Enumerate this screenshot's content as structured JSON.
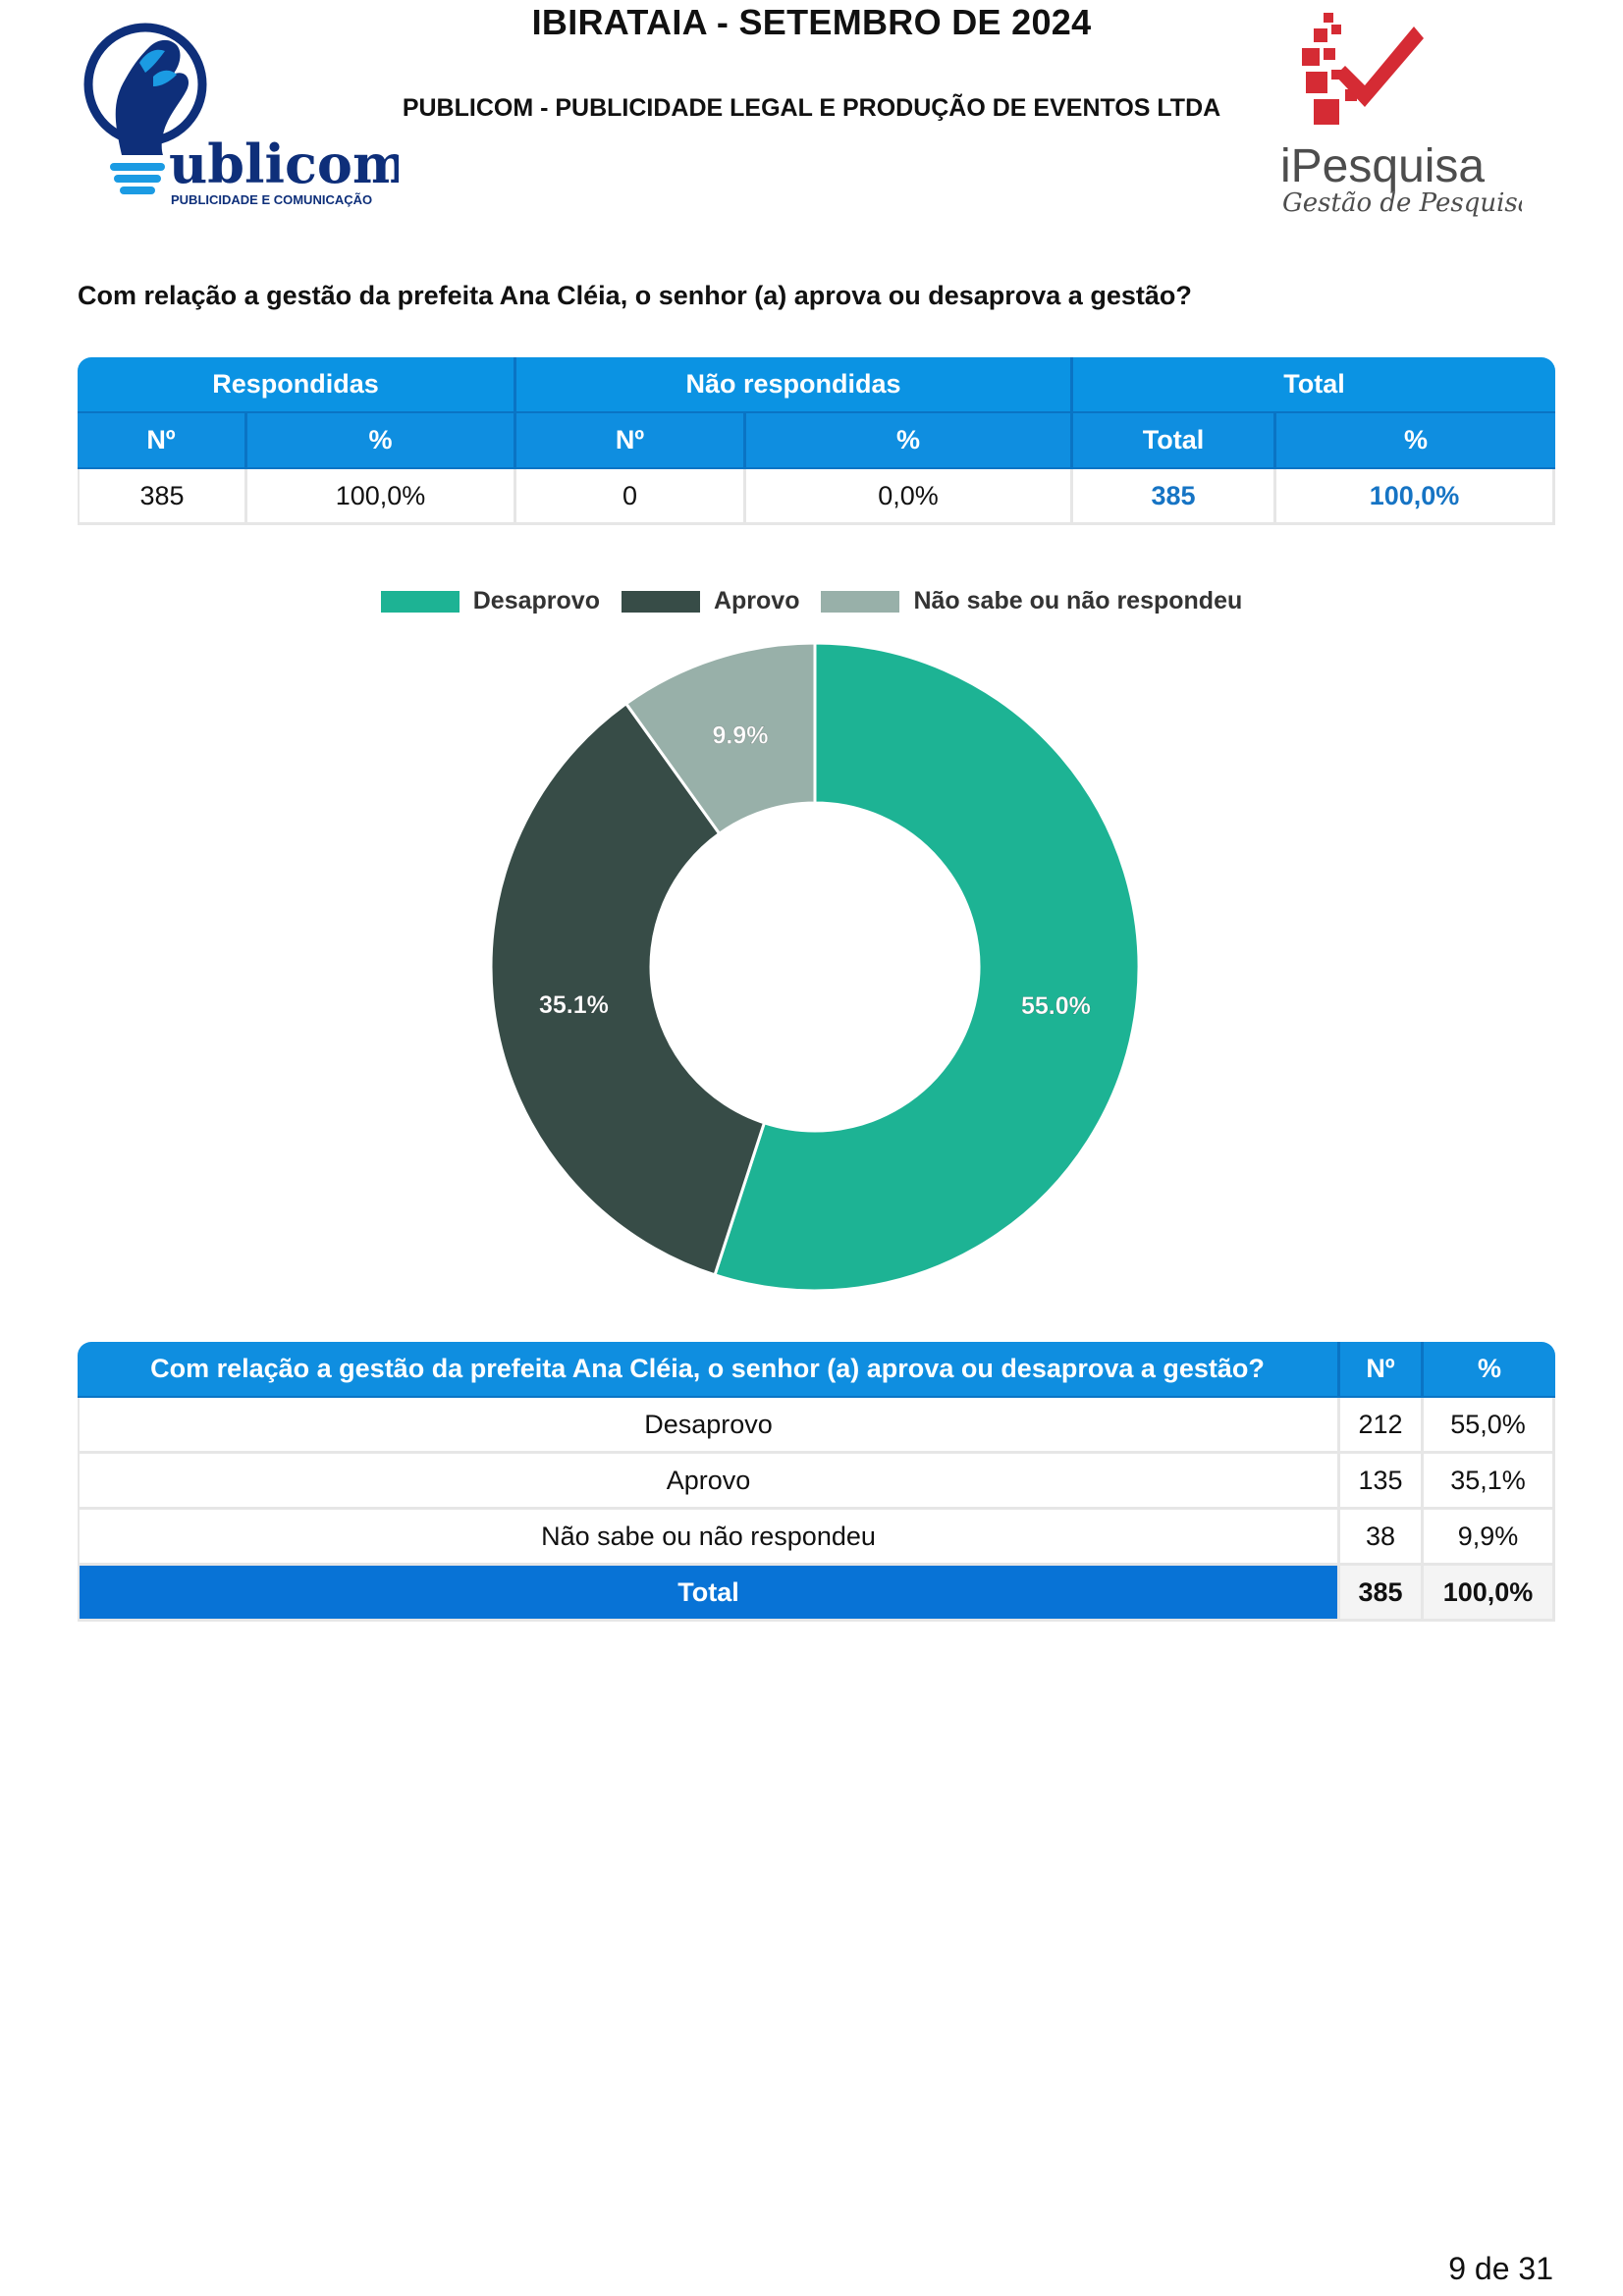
{
  "header": {
    "title": "IBIRATAIA - SETEMBRO DE 2024",
    "company": "PUBLICOM - PUBLICIDADE LEGAL E PRODUÇÃO DE EVENTOS LTDA",
    "logo_left": {
      "text": "ublicom",
      "tagline": "PUBLICIDADE E COMUNICAÇÃO",
      "colors": {
        "navy": "#0e2f7a",
        "blue": "#1b9be3"
      }
    },
    "logo_right": {
      "name": "iPesquisa",
      "tagline": "Gestão de Pesquisa",
      "colors": {
        "red": "#d52b34",
        "gray": "#4d4d4d"
      }
    }
  },
  "question": "Com relação a gestão da prefeita Ana Cléia, o senhor (a) aprova ou desaprova a gestão?",
  "summary_table": {
    "groups": [
      "Respondidas",
      "Não respondidas",
      "Total"
    ],
    "columns": [
      "Nº",
      "%",
      "Nº",
      "%",
      "Total",
      "%"
    ],
    "values": [
      "385",
      "100,0%",
      "0",
      "0,0%",
      "385",
      "100,0%"
    ]
  },
  "chart_data": {
    "type": "pie",
    "donut": true,
    "labels": [
      "Desaprovo",
      "Aprovo",
      "Não sabe ou não respondeu"
    ],
    "values": [
      55.0,
      35.1,
      9.9
    ],
    "data_labels": [
      "55.0%",
      "35.1%",
      "9.9%"
    ],
    "colors": [
      "#1db394",
      "#374c47",
      "#98b0a9"
    ],
    "legend_position": "top"
  },
  "results_table": {
    "header": {
      "question": "Com relação a gestão da prefeita Ana Cléia, o senhor (a) aprova ou desaprova a gestão?",
      "n": "Nº",
      "pct": "%"
    },
    "rows": [
      {
        "label": "Desaprovo",
        "n": "212",
        "pct": "55,0%"
      },
      {
        "label": "Aprovo",
        "n": "135",
        "pct": "35,1%"
      },
      {
        "label": "Não sabe ou não respondeu",
        "n": "38",
        "pct": "9,9%"
      }
    ],
    "total": {
      "label": "Total",
      "n": "385",
      "pct": "100,0%"
    }
  },
  "footer": {
    "page": "9 de 31"
  },
  "colors": {
    "header_blue": "#0f8ee0",
    "total_blue": "#0873d6",
    "highlight_text": "#1674c4"
  }
}
